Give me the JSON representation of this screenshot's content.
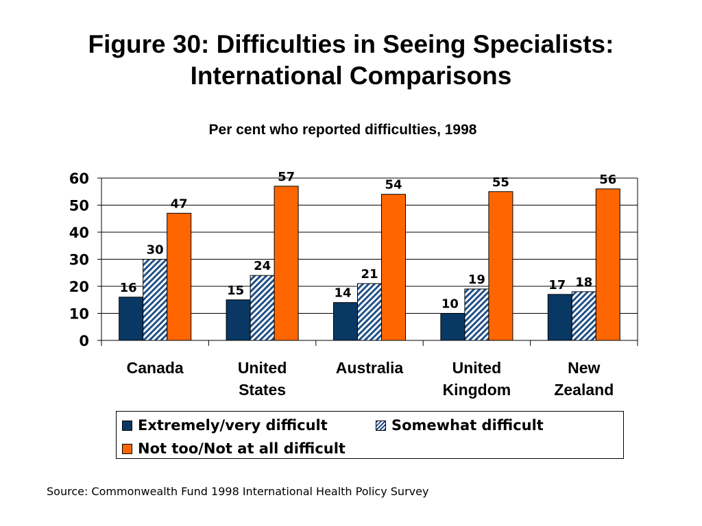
{
  "title_line1": "Figure 30: Difficulties in Seeing Specialists:",
  "title_line2": "International Comparisons",
  "subtitle": "Per cent who reported difficulties, 1998",
  "source": "Source: Commonwealth Fund 1998 International Health Policy Survey",
  "colors": {
    "extremely": "#083863",
    "somewhat": "#1f4f88",
    "not_too": "#ff6600"
  },
  "chart_data": {
    "type": "bar",
    "categories": [
      [
        "Canada"
      ],
      [
        "United",
        "States"
      ],
      [
        "Australia"
      ],
      [
        "United",
        "Kingdom"
      ],
      [
        "New",
        "Zealand"
      ]
    ],
    "series": [
      {
        "name": "Extremely/very difficult",
        "values": [
          16,
          15,
          14,
          10,
          17
        ]
      },
      {
        "name": "Somewhat difficult",
        "values": [
          30,
          24,
          21,
          19,
          18
        ]
      },
      {
        "name": "Not too/Not at all difficult",
        "values": [
          47,
          57,
          54,
          55,
          56
        ]
      }
    ],
    "yticks": [
      0,
      10,
      20,
      30,
      40,
      50,
      60
    ],
    "ylim": [
      0,
      60
    ],
    "grid": true,
    "legend": "bottom"
  }
}
